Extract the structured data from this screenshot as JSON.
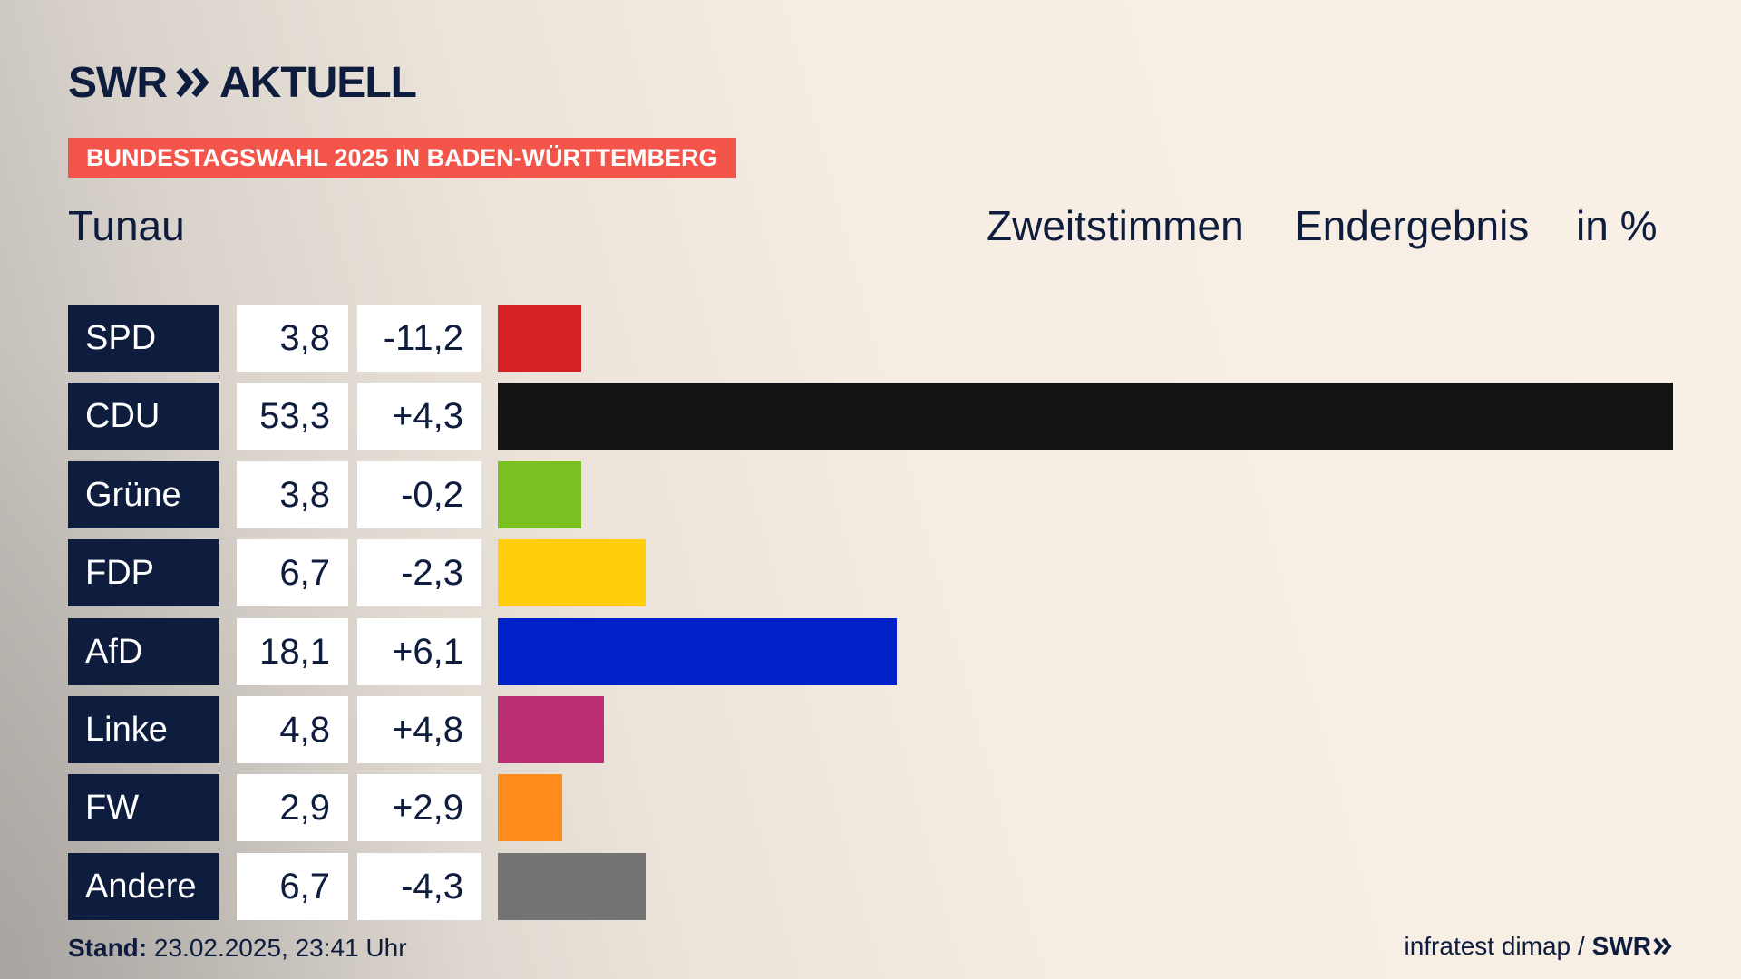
{
  "brand": {
    "name": "SWR",
    "product": "AKTUELL"
  },
  "badge": "BUNDESTAGSWAHL 2025 IN BADEN-WÜRTTEMBERG",
  "region": "Tunau",
  "header": {
    "vote_type": "Zweitstimmen",
    "status": "Endergebnis",
    "unit": "in %"
  },
  "chart_data": {
    "type": "bar",
    "orientation": "horizontal",
    "categories": [
      "SPD",
      "CDU",
      "Grüne",
      "FDP",
      "AfD",
      "Linke",
      "FW",
      "Andere"
    ],
    "values": [
      3.8,
      53.3,
      3.8,
      6.7,
      18.1,
      4.8,
      2.9,
      6.7
    ],
    "value_labels": [
      "3,8",
      "53,3",
      "3,8",
      "6,7",
      "18,1",
      "4,8",
      "2,9",
      "6,7"
    ],
    "diff_labels": [
      "-11,2",
      "+4,3",
      "-0,2",
      "-2,3",
      "+6,1",
      "+4,8",
      "+2,9",
      "-4,3"
    ],
    "colors": [
      "#d52121",
      "#141414",
      "#79c020",
      "#ffcd0c",
      "#0020c8",
      "#bb2f74",
      "#ff8c1a",
      "#747474"
    ],
    "xlim": [
      0,
      53.3
    ]
  },
  "footer": {
    "stand_label": "Stand:",
    "stand_value": "23.02.2025, 23:41 Uhr",
    "source": "infratest dimap /",
    "source_brand": "SWR"
  }
}
